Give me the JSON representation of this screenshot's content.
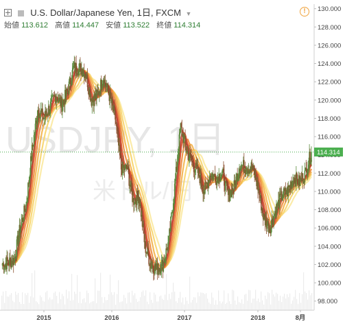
{
  "header": {
    "symbol_title": "U.S. Dollar/Japanese Yen, 1日, FXCM",
    "ohlc": [
      {
        "label": "始値",
        "value": "113.612"
      },
      {
        "label": "高値",
        "value": "114.447"
      },
      {
        "label": "安値",
        "value": "113.522"
      },
      {
        "label": "終値",
        "value": "114.314"
      }
    ]
  },
  "watermark": {
    "symbol": "USDJPY, 1日",
    "name": "米ドル/円"
  },
  "icons": {
    "expand": "expand-icon",
    "series": "series-icon",
    "dropdown": "chevron-down-icon",
    "alert": "alert-icon"
  },
  "colors": {
    "up": "#5a8a3c",
    "down": "#8b4f2f",
    "last_price_badge": "#4caf50",
    "ribbon_outer": "#f9e07a",
    "ribbon_inner": "#c0392b"
  },
  "chart_data": {
    "type": "line",
    "x_ticks": [
      "2015",
      "2016",
      "2017",
      "2018",
      "8月"
    ],
    "y_ticks": [
      "98.000",
      "100.000",
      "102.000",
      "104.000",
      "106.000",
      "108.000",
      "110.000",
      "112.000",
      "114.000",
      "116.000",
      "118.000",
      "120.000",
      "122.000",
      "124.000",
      "126.000",
      "128.000",
      "130.000"
    ],
    "ylim": [
      97,
      130.5
    ],
    "last_price": "114.314",
    "price_path": [
      [
        "2014-06",
        102.0
      ],
      [
        "2014-08",
        102.5
      ],
      [
        "2014-09",
        106.0
      ],
      [
        "2014-10",
        108.5
      ],
      [
        "2014-11",
        114.5
      ],
      [
        "2014-12",
        119.0
      ],
      [
        "2015-01",
        118.0
      ],
      [
        "2015-03",
        120.5
      ],
      [
        "2015-04",
        119.5
      ],
      [
        "2015-05",
        121.0
      ],
      [
        "2015-06",
        123.5
      ],
      [
        "2015-07",
        123.5
      ],
      [
        "2015-08",
        123.0
      ],
      [
        "2015-09",
        120.0
      ],
      [
        "2015-10",
        120.5
      ],
      [
        "2015-11",
        122.5
      ],
      [
        "2015-12",
        120.5
      ],
      [
        "2016-01",
        118.0
      ],
      [
        "2016-02",
        112.5
      ],
      [
        "2016-03",
        112.5
      ],
      [
        "2016-04",
        109.0
      ],
      [
        "2016-05",
        109.5
      ],
      [
        "2016-06",
        104.0
      ],
      [
        "2016-07",
        102.0
      ],
      [
        "2016-08",
        101.5
      ],
      [
        "2016-09",
        102.0
      ],
      [
        "2016-10",
        104.5
      ],
      [
        "2016-11",
        110.5
      ],
      [
        "2016-12",
        117.0
      ],
      [
        "2017-01",
        114.5
      ],
      [
        "2017-02",
        113.0
      ],
      [
        "2017-03",
        112.0
      ],
      [
        "2017-04",
        110.0
      ],
      [
        "2017-05",
        112.0
      ],
      [
        "2017-06",
        111.5
      ],
      [
        "2017-07",
        112.0
      ],
      [
        "2017-08",
        109.5
      ],
      [
        "2017-09",
        110.5
      ],
      [
        "2017-10",
        113.0
      ],
      [
        "2017-11",
        112.5
      ],
      [
        "2017-12",
        112.7
      ],
      [
        "2018-01",
        110.5
      ],
      [
        "2018-02",
        107.0
      ],
      [
        "2018-03",
        106.0
      ],
      [
        "2018-04",
        108.0
      ],
      [
        "2018-05",
        109.5
      ],
      [
        "2018-06",
        110.0
      ],
      [
        "2018-07",
        111.5
      ],
      [
        "2018-08",
        111.0
      ],
      [
        "2018-09",
        112.0
      ],
      [
        "2018-10",
        114.3
      ]
    ]
  }
}
